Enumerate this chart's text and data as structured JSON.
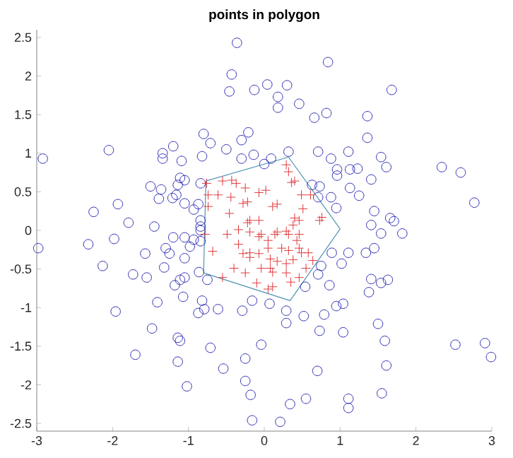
{
  "chart_data": {
    "type": "scatter",
    "title": "points in polygon",
    "xlim": [
      -3,
      3
    ],
    "ylim": [
      -2.6,
      2.6
    ],
    "xticks": [
      -3,
      -2,
      -1,
      0,
      1,
      2,
      3
    ],
    "yticks": [
      -2.5,
      -2,
      -1.5,
      -1,
      -0.5,
      0,
      0.5,
      1,
      1.5,
      2,
      2.5
    ],
    "grid": false,
    "legend": false,
    "series": [
      {
        "type": "line",
        "marker": "none",
        "color": "#4f93b0",
        "x": [
          -0.77,
          0.32
        ],
        "values": [
          0.64,
          0.95
        ]
      },
      {
        "type": "line",
        "marker": "none",
        "color": "#4f93b0",
        "x": [
          0.32,
          1.0
        ],
        "values": [
          0.95,
          0.02
        ]
      },
      {
        "type": "line",
        "marker": "none",
        "color": "#4f93b0",
        "x": [
          1.0,
          0.34
        ],
        "values": [
          0.02,
          -0.91
        ]
      },
      {
        "type": "line",
        "marker": "none",
        "color": "#4f93b0",
        "x": [
          0.34,
          -0.8
        ],
        "values": [
          -0.91,
          -0.55
        ]
      },
      {
        "type": "line",
        "marker": "none",
        "color": "#4f93b0",
        "x": [
          -0.8,
          -0.77
        ],
        "values": [
          -0.55,
          0.64
        ]
      },
      {
        "marker": "circle",
        "color": "#2e2eb4",
        "x": [
          -0.36,
          -0.43,
          -0.46,
          -0.8,
          -0.71,
          -0.5,
          -0.3,
          -0.3,
          -0.82,
          -1.2,
          -1.34,
          -1.34,
          -1.09,
          -2.05,
          -2.92,
          -1.5,
          -1.36,
          -1.39,
          -1.11,
          -1.05,
          -1.14,
          -1.21,
          -1.16,
          -1.05,
          -0.84,
          -0.93,
          -0.87,
          -1.93,
          -2.25,
          -1.79,
          -1.45,
          -0.84,
          -0.84,
          -0.84,
          -2.98,
          -2.32,
          -1.98,
          -2.13,
          -1.57,
          -1.73,
          -1.55,
          -1.3,
          -1.25,
          -1.32,
          -1.2,
          -1.05,
          -0.93,
          -0.98,
          -0.84,
          -1.05,
          -1.05,
          -1.11,
          -1.18,
          -0.86,
          -0.75,
          -1.07,
          -1.41,
          -0.82,
          -0.87,
          -0.79,
          -0.61,
          -1.96,
          -1.48,
          -1.14,
          -1.11,
          -0.71,
          -1.7,
          -1.14,
          -0.54,
          -1.02,
          -0.25,
          -0.25,
          -0.29,
          0.89,
          1.11,
          1.34,
          1.45,
          1.54,
          1.82,
          1.02,
          0.75,
          0.71,
          1.41,
          1.54,
          1.63,
          1.38,
          0.86,
          0.54,
          1.04,
          0.95,
          0.79,
          0.52,
          0.29,
          0.29,
          0.07,
          -0.16,
          1.5,
          1.59,
          0.73,
          1.04,
          -0.04,
          2.52,
          2.91,
          2.99,
          1.61,
          0.7,
          1.55,
          0.55,
          1.11,
          1.11,
          0.34,
          0.21,
          -0.16,
          -0.18,
          0.84,
          -0.13,
          0.04,
          0.3,
          0.18,
          0.18,
          0.46,
          0.66,
          0.82,
          1.68,
          1.36,
          1.36,
          -0.21,
          -0.14,
          0.0,
          0.09,
          0.32,
          0.71,
          0.88,
          1.11,
          0.96,
          0.96,
          1.13,
          1.23,
          1.54,
          1.61,
          1.41,
          1.13,
          1.25,
          2.34,
          2.59,
          2.77,
          0.63,
          0.73,
          0.71,
          0.88,
          0.95,
          1.45,
          1.41,
          1.66,
          1.71
        ],
        "values": [
          2.43,
          2.02,
          1.8,
          1.25,
          1.13,
          1.05,
          1.17,
          0.93,
          0.96,
          1.09,
          1.0,
          0.93,
          0.9,
          1.04,
          0.93,
          0.57,
          0.53,
          0.41,
          0.68,
          0.65,
          0.59,
          0.42,
          0.46,
          0.35,
          0.61,
          0.27,
          0.34,
          0.34,
          0.24,
          0.1,
          0.05,
          0.13,
          0.05,
          0.0,
          -0.23,
          -0.18,
          -0.11,
          -0.46,
          -0.3,
          -0.57,
          -0.61,
          -0.23,
          -0.3,
          -0.48,
          -0.09,
          -0.09,
          -0.12,
          -0.21,
          -0.14,
          -0.36,
          -0.61,
          -0.64,
          -0.71,
          -0.54,
          -0.64,
          -0.86,
          -0.93,
          -0.91,
          -1.07,
          -1.02,
          -1.02,
          -1.05,
          -1.27,
          -1.39,
          -1.43,
          -1.52,
          -1.61,
          -1.7,
          -1.79,
          -2.02,
          -1.66,
          -1.95,
          -1.04,
          -0.29,
          -0.29,
          -0.29,
          -0.23,
          -0.04,
          -0.04,
          -0.43,
          -0.46,
          -0.57,
          -0.63,
          -0.68,
          -0.64,
          -0.8,
          -0.71,
          -0.73,
          -0.95,
          -0.98,
          -1.09,
          -1.11,
          -1.04,
          -1.2,
          -0.95,
          -0.91,
          -1.21,
          -1.43,
          -1.3,
          -1.32,
          -1.48,
          -1.48,
          -1.46,
          -1.64,
          -1.75,
          -1.82,
          -2.11,
          -2.18,
          -2.18,
          -2.3,
          -2.25,
          -2.48,
          -2.46,
          -2.13,
          2.18,
          1.82,
          1.89,
          1.88,
          1.73,
          1.59,
          1.64,
          1.46,
          1.52,
          1.82,
          1.48,
          1.2,
          1.27,
          0.98,
          0.86,
          0.93,
          1.02,
          1.02,
          0.93,
          1.02,
          0.79,
          0.71,
          0.79,
          0.8,
          0.95,
          0.82,
          0.66,
          0.55,
          0.45,
          0.82,
          0.75,
          0.36,
          0.59,
          0.57,
          0.43,
          0.43,
          0.29,
          0.25,
          0.07,
          0.16,
          0.12
        ]
      },
      {
        "marker": "cross",
        "color": "#e0393e",
        "x": [
          0.29,
          0.32,
          0.36,
          0.4,
          -0.55,
          -0.43,
          -0.76,
          -0.61,
          -0.37,
          -0.25,
          -0.28,
          -0.22,
          -0.07,
          0.02,
          -0.44,
          -0.46,
          -0.74,
          -0.74,
          0.11,
          0.17,
          0.49,
          0.51,
          0.61,
          0.76,
          0.73,
          0.46,
          0.4,
          0.38,
          -0.19,
          -0.22,
          -0.07,
          0.14,
          0.17,
          0.29,
          0.32,
          0.46,
          0.43,
          -0.04,
          -0.07,
          0.05,
          -0.19,
          -0.78,
          -0.34,
          -0.28,
          -0.19,
          -0.19,
          -0.07,
          -0.68,
          0.05,
          0.23,
          0.32,
          0.46,
          0.49,
          -0.04,
          0.08,
          0.11,
          0.17,
          0.29,
          0.38,
          0.58,
          0.64,
          -0.4,
          -0.25,
          -0.55,
          -0.1,
          0.05,
          0.11,
          0.35,
          -0.49,
          -0.34,
          0.08,
          0.55,
          0.46,
          0.29
        ],
        "values": [
          0.85,
          0.76,
          0.62,
          0.64,
          0.64,
          0.65,
          0.61,
          0.46,
          0.61,
          0.55,
          0.35,
          0.37,
          0.49,
          0.52,
          0.43,
          0.22,
          0.46,
          0.31,
          0.31,
          0.34,
          0.46,
          0.28,
          0.46,
          0.17,
          0.13,
          0.13,
          0.16,
          0.07,
          0.13,
          0.1,
          0.13,
          -0.05,
          -0.02,
          -0.01,
          -0.05,
          -0.05,
          -0.13,
          -0.05,
          -0.08,
          -0.13,
          -0.02,
          -0.05,
          -0.18,
          -0.3,
          -0.29,
          -0.35,
          -0.3,
          -0.27,
          -0.23,
          -0.23,
          -0.26,
          -0.23,
          -0.29,
          -0.49,
          -0.49,
          -0.54,
          -0.4,
          -0.43,
          -0.38,
          -0.29,
          -0.39,
          -0.49,
          -0.55,
          -0.61,
          -0.68,
          -0.76,
          -0.73,
          -0.67,
          -0.05,
          0.01,
          -0.37,
          -0.49,
          -0.61,
          -0.55
        ]
      }
    ]
  }
}
